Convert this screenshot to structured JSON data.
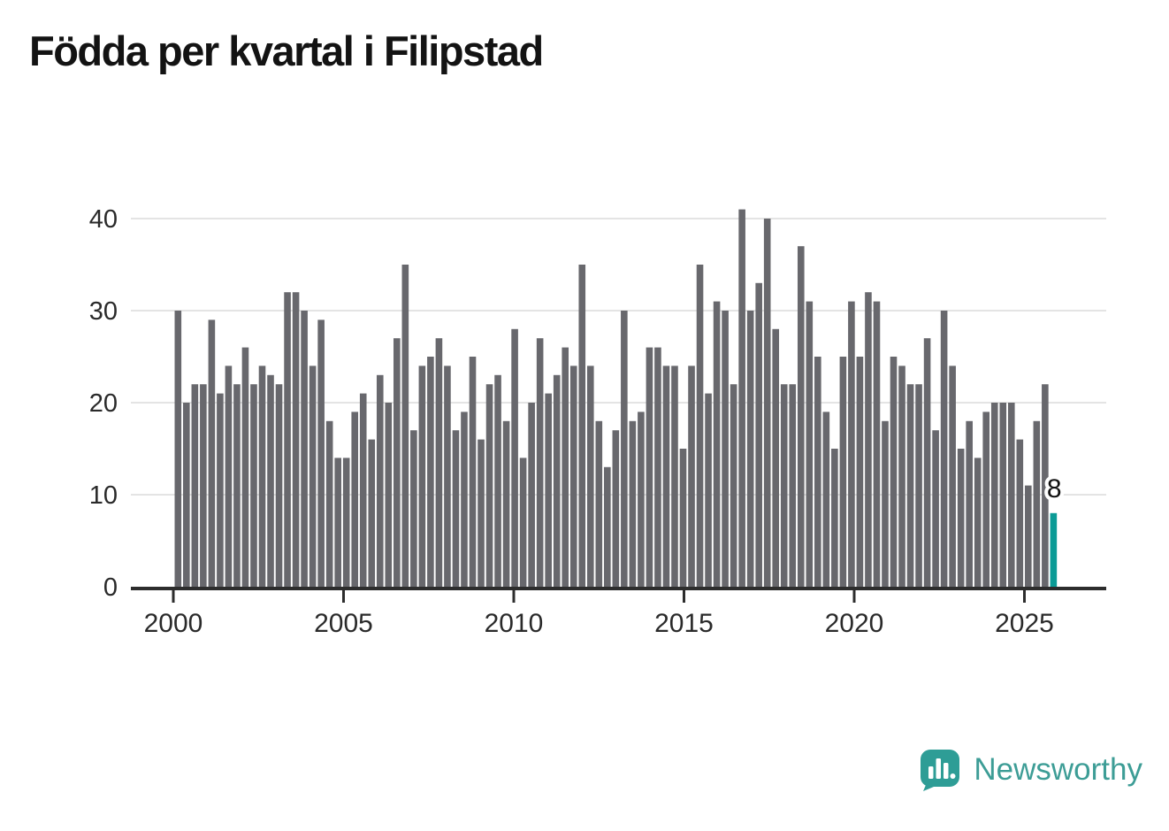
{
  "title": "Födda per kvartal i Filipstad",
  "chart_data": {
    "type": "bar",
    "title": "Födda per kvartal i Filipstad",
    "xlabel": "",
    "ylabel": "",
    "start_period": "2000-Q1",
    "periods_per_year": 4,
    "values": [
      30,
      20,
      22,
      22,
      29,
      21,
      24,
      22,
      26,
      22,
      24,
      23,
      22,
      32,
      32,
      30,
      24,
      29,
      18,
      14,
      14,
      19,
      21,
      16,
      23,
      20,
      27,
      35,
      17,
      24,
      25,
      27,
      24,
      17,
      19,
      25,
      16,
      22,
      23,
      18,
      28,
      14,
      20,
      27,
      21,
      23,
      26,
      24,
      35,
      24,
      18,
      13,
      17,
      30,
      18,
      19,
      26,
      26,
      24,
      24,
      15,
      24,
      35,
      21,
      31,
      30,
      22,
      41,
      30,
      33,
      40,
      28,
      22,
      22,
      37,
      31,
      25,
      19,
      15,
      25,
      31,
      25,
      32,
      31,
      18,
      25,
      24,
      22,
      22,
      27,
      17,
      30,
      24,
      15,
      18,
      14,
      19,
      20,
      20,
      20,
      16,
      11,
      18,
      22,
      8
    ],
    "highlight_last": true,
    "last_value_label": "8",
    "xticks": [
      "2000",
      "2005",
      "2010",
      "2015",
      "2020",
      "2025"
    ],
    "yticks": [
      0,
      10,
      20,
      30,
      40
    ],
    "ylim": [
      0,
      44
    ],
    "grid": "horizontal",
    "legend": "none",
    "bar_color": "#68686D",
    "highlight_color": "#0B9B96",
    "grid_color": "#E4E4E4",
    "axis_color": "#2D2D2D",
    "label_color": "#2A2A2A",
    "callout_text_color": "#111111",
    "callout_halo_color": "#FFFFFF"
  },
  "branding": {
    "logo_text": "Newsworthy",
    "logo_color": "#3D9D96"
  }
}
